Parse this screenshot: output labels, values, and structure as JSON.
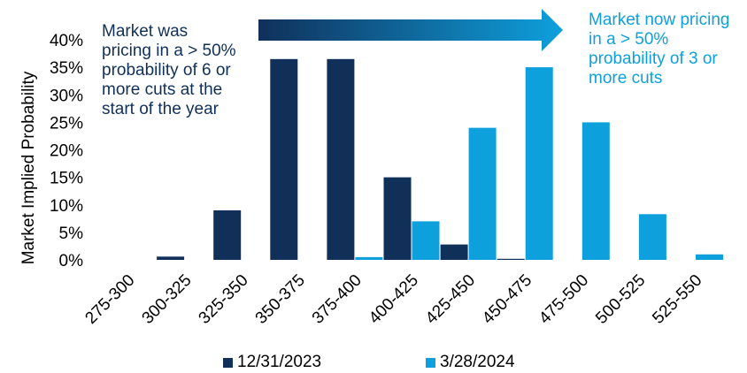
{
  "chart_data": {
    "type": "bar",
    "ylabel": "Market Implied Probability",
    "xlabel": "",
    "ylim": [
      0,
      40
    ],
    "yticks": [
      "0%",
      "5%",
      "10%",
      "15%",
      "20%",
      "25%",
      "30%",
      "35%",
      "40%"
    ],
    "categories": [
      "275-300",
      "300-325",
      "325-350",
      "350-375",
      "375-400",
      "400-425",
      "425-450",
      "450-475",
      "475-500",
      "500-525",
      "525-550"
    ],
    "series": [
      {
        "name": "12/31/2023",
        "color": "#10305a",
        "values": [
          0,
          0.6,
          9,
          36.5,
          36.5,
          15,
          2.8,
          0.2,
          0,
          0,
          0
        ]
      },
      {
        "name": "3/28/2024",
        "color": "#0ea0dd",
        "values": [
          0,
          0,
          0,
          0,
          0.5,
          7,
          24,
          35,
          25,
          8.3,
          1
        ]
      }
    ],
    "grid": false,
    "legend": "bottom",
    "annotations": {
      "left": "Market was\npricing in a > 50%\nprobability of 6 or\nmore cuts at the\nstart of the year",
      "right": "Market now pricing\nin a > 50%\nprobability of 3 or\nmore cuts"
    }
  }
}
